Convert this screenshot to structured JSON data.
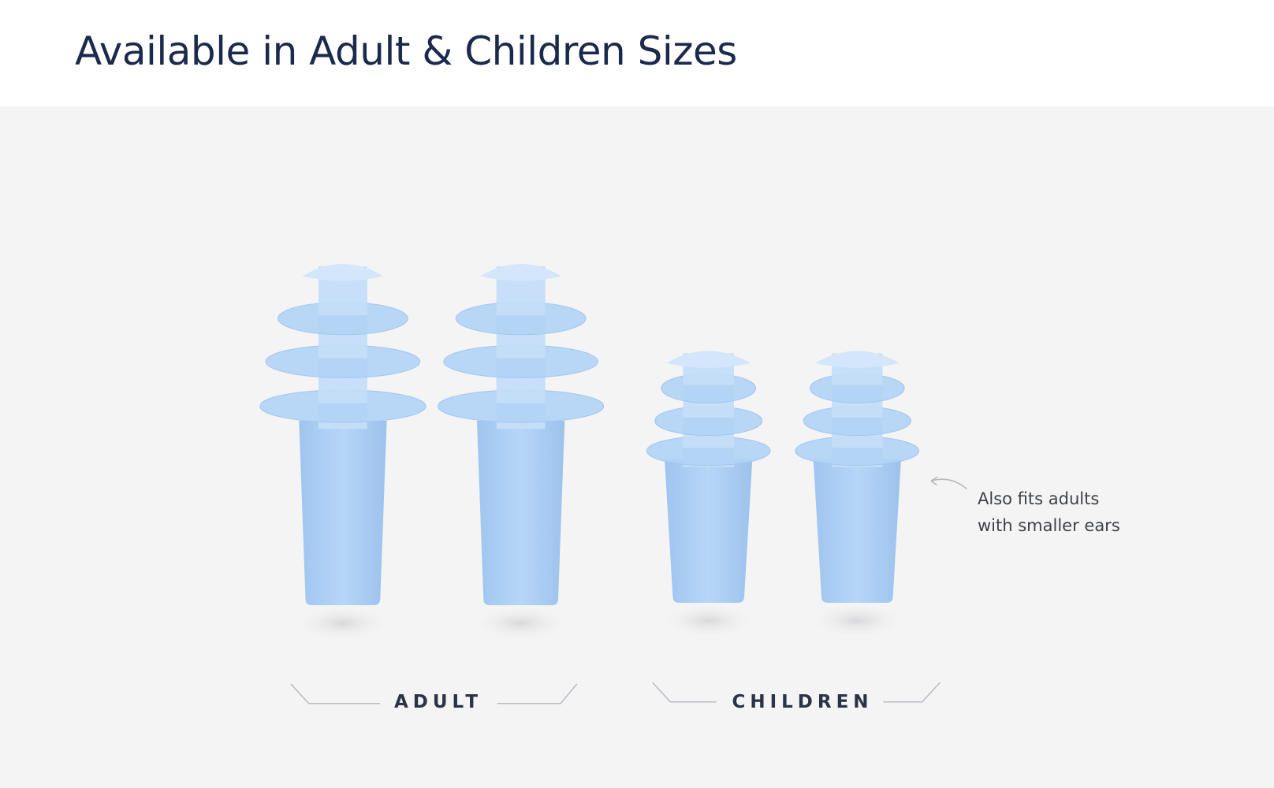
{
  "header": {
    "title": "Available in Adult & Children Sizes"
  },
  "groups": [
    {
      "label": "ADULT",
      "count": 2
    },
    {
      "label": "CHILDREN",
      "count": 2
    }
  ],
  "note": {
    "line1": "Also fits adults",
    "line2": "with smaller ears"
  },
  "colors": {
    "title": "#1b2a4c",
    "earplug": "#a9ccf2",
    "background": "#f4f4f5"
  }
}
